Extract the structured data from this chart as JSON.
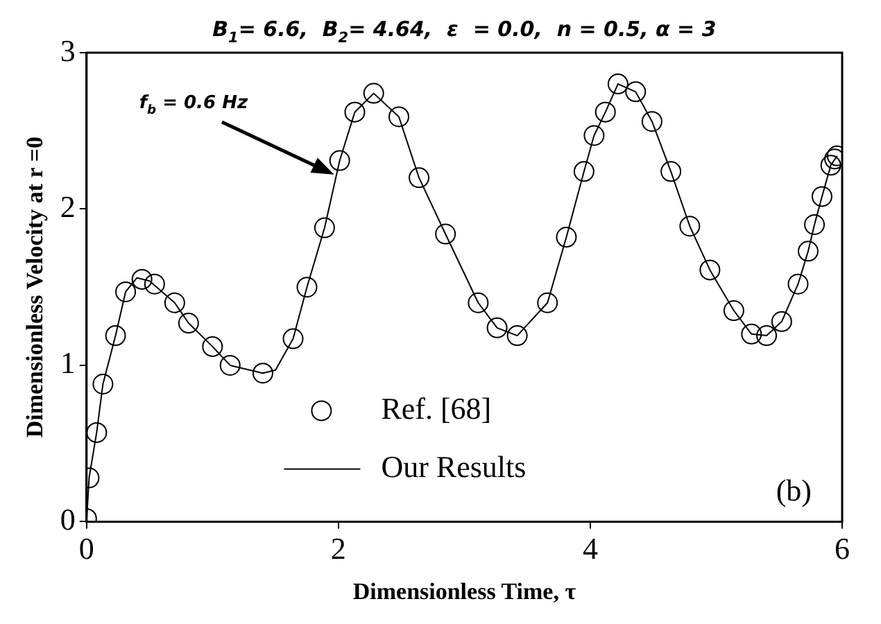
{
  "chart_data": {
    "type": "scatter",
    "title": "B$_{1}$= 6.6,  B$_{2}$= 4.64,  ε  = 0.0,  n = 0.5, α = 3",
    "xlabel": "Dimensionless Time, τ",
    "ylabel": "Dimensionless Velocity at r =0",
    "xlim": [
      0,
      6
    ],
    "xticks": [
      0,
      2,
      4,
      6
    ],
    "ylim": [
      0,
      3
    ],
    "yticks": [
      0,
      1,
      2,
      3
    ],
    "grid": false,
    "legend": "bottom",
    "marker": "circle",
    "annotations": [
      "f$_{b}$ = 0.6 Hz",
      "(b)"
    ],
    "series": [
      {
        "name": "Ref. [68]",
        "color": "#000000",
        "x": [
          0,
          0.02,
          0.08,
          0.13,
          0.23,
          0.31,
          0.44,
          0.54,
          0.7,
          0.81,
          1.0,
          1.14,
          1.4,
          1.64,
          1.75,
          1.89,
          2.01,
          2.13,
          2.28,
          2.48,
          2.64,
          2.85,
          3.11,
          3.26,
          3.42,
          3.66,
          3.81,
          3.95,
          4.03,
          4.12,
          4.22,
          4.36,
          4.49,
          4.64,
          4.79,
          4.95,
          5.14,
          5.28,
          5.4,
          5.52,
          5.65,
          5.73,
          5.78,
          5.84,
          5.91,
          5.94,
          5.96
        ],
        "values": [
          0.02,
          0.28,
          0.57,
          0.88,
          1.19,
          1.47,
          1.55,
          1.52,
          1.4,
          1.27,
          1.12,
          1.0,
          0.95,
          1.17,
          1.5,
          1.88,
          2.31,
          2.62,
          2.74,
          2.59,
          2.2,
          1.84,
          1.4,
          1.24,
          1.19,
          1.4,
          1.82,
          2.24,
          2.47,
          2.62,
          2.8,
          2.75,
          2.56,
          2.24,
          1.89,
          1.61,
          1.35,
          1.2,
          1.19,
          1.28,
          1.52,
          1.73,
          1.9,
          2.08,
          2.28,
          2.32,
          2.34
        ]
      },
      {
        "name": "Our Results",
        "type": "line",
        "color": "#000000",
        "marker": "none",
        "line_style": "solid",
        "x": [
          0,
          0.02,
          0.08,
          0.13,
          0.23,
          0.31,
          0.4,
          0.5,
          0.7,
          0.81,
          1.0,
          1.14,
          1.4,
          1.5,
          1.64,
          1.75,
          1.89,
          2.01,
          2.13,
          2.28,
          2.48,
          2.64,
          2.85,
          3.11,
          3.26,
          3.42,
          3.66,
          3.81,
          3.95,
          4.03,
          4.12,
          4.22,
          4.36,
          4.49,
          4.64,
          4.79,
          4.95,
          5.14,
          5.28,
          5.4,
          5.52,
          5.65,
          5.73,
          5.78,
          5.84,
          5.91,
          5.96
        ],
        "values": [
          0,
          0.28,
          0.57,
          0.88,
          1.19,
          1.47,
          1.56,
          1.54,
          1.4,
          1.27,
          1.12,
          1.0,
          0.95,
          0.97,
          1.17,
          1.5,
          1.88,
          2.31,
          2.62,
          2.74,
          2.59,
          2.2,
          1.84,
          1.4,
          1.24,
          1.19,
          1.4,
          1.82,
          2.24,
          2.47,
          2.62,
          2.8,
          2.75,
          2.56,
          2.24,
          1.89,
          1.61,
          1.35,
          1.2,
          1.19,
          1.28,
          1.52,
          1.73,
          1.9,
          2.08,
          2.28,
          2.34
        ]
      }
    ]
  }
}
